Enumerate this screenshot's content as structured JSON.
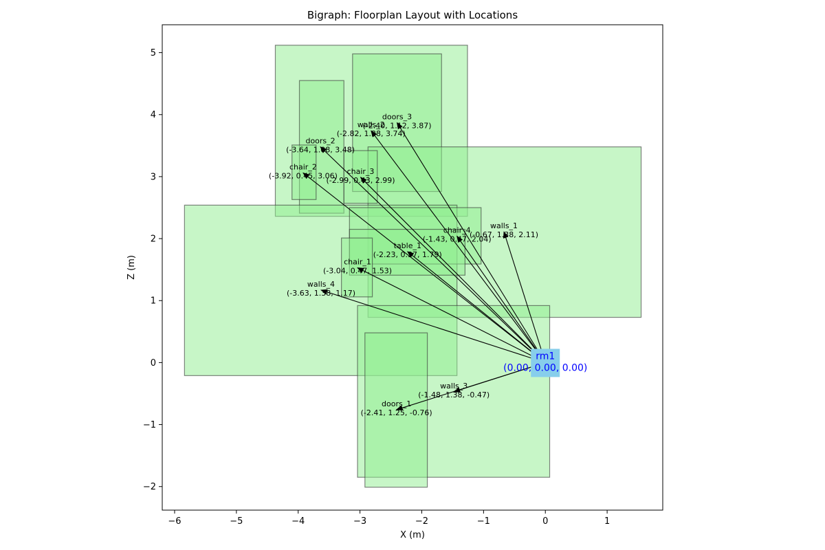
{
  "chart_data": {
    "type": "scatter",
    "title": "Bigraph: Floorplan Layout with Locations",
    "xlabel": "X (m)",
    "ylabel": "Z (m)",
    "xlim": [
      -6.2,
      1.9
    ],
    "ylim": [
      -2.38,
      5.45
    ],
    "xticks": [
      -6,
      -5,
      -4,
      -3,
      -2,
      -1,
      0,
      1
    ],
    "yticks": [
      -2,
      -1,
      0,
      1,
      2,
      3,
      4,
      5
    ],
    "xtick_labels": [
      "−6",
      "−5",
      "−4",
      "−3",
      "−2",
      "−1",
      "0",
      "1"
    ],
    "ytick_labels": [
      "−2",
      "−1",
      "0",
      "1",
      "2",
      "3",
      "4",
      "5"
    ],
    "grid": false,
    "region_color": "#90ee90",
    "origin_color": "#87ceeb",
    "label_color_origin": "#0000ff",
    "regions": [
      {
        "x0": -4.37,
        "x1": -1.26,
        "z0": 2.36,
        "z1": 5.12
      },
      {
        "x0": -3.98,
        "x1": -3.26,
        "z0": 2.41,
        "z1": 4.55
      },
      {
        "x0": -3.12,
        "x1": -1.68,
        "z0": 2.76,
        "z1": 4.98
      },
      {
        "x0": -2.87,
        "x1": 1.55,
        "z0": 0.73,
        "z1": 3.48
      },
      {
        "x0": -5.84,
        "x1": -1.43,
        "z0": -0.21,
        "z1": 2.54
      },
      {
        "x0": -3.17,
        "x1": -1.04,
        "z0": 1.59,
        "z1": 2.5
      },
      {
        "x0": -3.17,
        "x1": -1.3,
        "z0": 1.41,
        "z1": 2.15
      },
      {
        "x0": -3.3,
        "x1": -2.8,
        "z0": 1.06,
        "z1": 2.01
      },
      {
        "x0": -4.1,
        "x1": -3.71,
        "z0": 2.63,
        "z1": 3.51
      },
      {
        "x0": -3.26,
        "x1": -2.72,
        "z0": 2.57,
        "z1": 3.42
      },
      {
        "x0": -3.04,
        "x1": 0.07,
        "z0": -1.85,
        "z1": 0.92
      },
      {
        "x0": -2.92,
        "x1": -1.91,
        "z0": -2.01,
        "z1": 0.48
      }
    ],
    "origin": {
      "name": "rm1",
      "coord": "(0.00, 0.00, 0.00)",
      "x": 0,
      "z": 0
    },
    "nodes": [
      {
        "name": "doors_3",
        "coord": "(-2.40, 1.12, 3.87)",
        "x": -2.4,
        "z": 3.87
      },
      {
        "name": "walls_2",
        "coord": "(-2.82, 1.38, 3.74)",
        "x": -2.82,
        "z": 3.74
      },
      {
        "name": "doors_2",
        "coord": "(-3.64, 1.08, 3.48)",
        "x": -3.64,
        "z": 3.48
      },
      {
        "name": "chair_2",
        "coord": "(-3.92, 0.45, 3.06)",
        "x": -3.92,
        "z": 3.06
      },
      {
        "name": "chair_3",
        "coord": "(-2.99, 0.43, 2.99)",
        "x": -2.99,
        "z": 2.99
      },
      {
        "name": "walls_1",
        "coord": "(-0.67, 1.38, 2.11)",
        "x": -0.67,
        "z": 2.11
      },
      {
        "name": "chair_4",
        "coord": "(-1.43, 0.47, 2.04)",
        "x": -1.43,
        "z": 2.04
      },
      {
        "name": "table_1",
        "coord": "(-2.23, 0.37, 1.79)",
        "x": -2.23,
        "z": 1.79
      },
      {
        "name": "chair_1",
        "coord": "(-3.04, 0.47, 1.53)",
        "x": -3.04,
        "z": 1.53
      },
      {
        "name": "walls_4",
        "coord": "(-3.63, 1.38, 1.17)",
        "x": -3.63,
        "z": 1.17
      },
      {
        "name": "walls_3",
        "coord": "(-1.48, 1.38, -0.47)",
        "x": -1.48,
        "z": -0.47
      },
      {
        "name": "doors_1",
        "coord": "(-2.41, 1.25, -0.76)",
        "x": -2.41,
        "z": -0.76
      }
    ]
  }
}
